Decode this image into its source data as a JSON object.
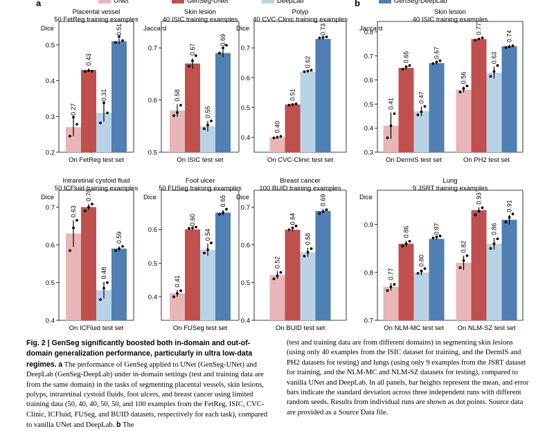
{
  "figure": {
    "panel_a_label": "a",
    "panel_b_label": "b",
    "legend": [
      {
        "name": "UNet",
        "color": "#e8b6b6"
      },
      {
        "name": "GenSeg-UNet",
        "color": "#c0504d"
      },
      {
        "name": "DeepLab",
        "color": "#b9d3e6"
      },
      {
        "name": "GenSeg-DeepLab",
        "color": "#4f7fb3"
      }
    ]
  },
  "chart_data": [
    {
      "type": "bar",
      "title": "Placental vessel",
      "subtitle": "50 FetReg training examples",
      "ylabel": "Dice",
      "ylim": [
        0.2,
        0.55
      ],
      "yticks": [
        "0.2",
        "0.3",
        "0.4",
        "0.5"
      ],
      "tick_values": [
        0.2,
        0.3,
        0.4,
        0.5
      ],
      "groups": [
        {
          "label": "On FetReg test set",
          "values": [
            0.27,
            0.43,
            0.31,
            0.51
          ],
          "labels": [
            "0.27",
            "0.43",
            "0.31",
            "0.51"
          ],
          "errors": [
            0.025,
            0.004,
            0.025,
            0.008
          ],
          "points": [
            [
              0.245,
              0.298,
              0.278
            ],
            [
              0.425,
              0.428,
              0.426
            ],
            [
              0.282,
              0.338,
              0.31
            ],
            [
              0.507,
              0.523,
              0.512
            ]
          ]
        }
      ]
    },
    {
      "type": "bar",
      "title": "Skin lesion",
      "subtitle": "40 ISIC training examples",
      "ylabel": "Jaccard",
      "ylim": [
        0.5,
        0.74
      ],
      "yticks": [
        "0.5",
        "0.6",
        "0.7"
      ],
      "tick_values": [
        0.5,
        0.6,
        0.7
      ],
      "groups": [
        {
          "label": "On ISIC test set",
          "values": [
            0.58,
            0.67,
            0.55,
            0.69
          ],
          "labels": [
            "0.58",
            "0.67",
            "0.55",
            "0.69"
          ],
          "errors": [
            0.012,
            0.01,
            0.01,
            0.008
          ],
          "points": [
            [
              0.57,
              0.576,
              0.59
            ],
            [
              0.665,
              0.675,
              0.685
            ],
            [
              0.545,
              0.552,
              0.56
            ],
            [
              0.69,
              0.7,
              0.705
            ]
          ]
        }
      ]
    },
    {
      "type": "bar",
      "title": "Polyp",
      "subtitle": "40 CVC-Clinic training examples",
      "ylabel": "Dice",
      "ylim": [
        0.35,
        0.77
      ],
      "yticks": [
        "0.4",
        "0.5",
        "0.6",
        "0.7"
      ],
      "tick_values": [
        0.4,
        0.5,
        0.6,
        0.7
      ],
      "groups": [
        {
          "label": "On CVC-Clinic test set",
          "values": [
            0.4,
            0.51,
            0.62,
            0.73
          ],
          "labels": [
            "0.40",
            "0.51",
            "0.62",
            "0.73"
          ],
          "errors": [
            0.005,
            0.003,
            0.003,
            0.002
          ],
          "points": [
            [
              0.398,
              0.4,
              0.403
            ],
            [
              0.508,
              0.51,
              0.512
            ],
            [
              0.62,
              0.622,
              0.625
            ],
            [
              0.733,
              0.735,
              0.737
            ]
          ]
        }
      ]
    },
    {
      "type": "bar",
      "title": "Skin lesion",
      "subtitle": "40 ISIC training examples",
      "ylabel": "Jaccard",
      "ylim": [
        0.3,
        0.82
      ],
      "yticks": [
        "0.3",
        "0.4",
        "0.5",
        "0.6",
        "0.7",
        "0.8"
      ],
      "tick_values": [
        0.3,
        0.4,
        0.5,
        0.6,
        0.7,
        0.8
      ],
      "groups": [
        {
          "label": "On DermIS test set",
          "values": [
            0.41,
            0.65,
            0.47,
            0.67
          ],
          "labels": [
            "0.41",
            "0.65",
            "0.47",
            "0.67"
          ],
          "errors": [
            0.055,
            0.008,
            0.02,
            0.006
          ],
          "points": [
            [
              0.36,
              0.41,
              0.46
            ],
            [
              0.645,
              0.655,
              0.66
            ],
            [
              0.455,
              0.468,
              0.49
            ],
            [
              0.668,
              0.675,
              0.68
            ]
          ]
        },
        {
          "label": "On PH2 test set",
          "values": [
            0.56,
            0.77,
            0.63,
            0.74
          ],
          "labels": [
            "0.56",
            "0.77",
            "0.63",
            "0.74"
          ],
          "errors": [
            0.012,
            0.005,
            0.025,
            0.005
          ],
          "points": [
            [
              0.55,
              0.565,
              0.575
            ],
            [
              0.765,
              0.77,
              0.775
            ],
            [
              0.615,
              0.635,
              0.66
            ],
            [
              0.735,
              0.738,
              0.742
            ]
          ]
        }
      ]
    },
    {
      "type": "bar",
      "title": "Intraretinal cystoid fluid",
      "subtitle": "50 ICFluid training examples",
      "ylabel": "Dice",
      "ylim": [
        0.4,
        0.73
      ],
      "yticks": [
        "0.4",
        "0.5",
        "0.6",
        "0.7"
      ],
      "tick_values": [
        0.4,
        0.5,
        0.6,
        0.7
      ],
      "groups": [
        {
          "label": "On ICFluid test set",
          "values": [
            0.63,
            0.7,
            0.48,
            0.59
          ],
          "labels": [
            "0.63",
            "0.70",
            "0.48",
            "0.59"
          ],
          "errors": [
            0.035,
            0.008,
            0.022,
            0.006
          ],
          "points": [
            [
              0.585,
              0.645,
              0.665
            ],
            [
              0.69,
              0.7,
              0.708
            ],
            [
              0.455,
              0.485,
              0.5
            ],
            [
              0.585,
              0.59,
              0.596
            ]
          ]
        }
      ]
    },
    {
      "type": "bar",
      "title": "Foot ulcer",
      "subtitle": "50 FUSeg training examples",
      "ylabel": "Dice",
      "ylim": [
        0.33,
        0.7
      ],
      "yticks": [
        "0.4",
        "0.5",
        "0.6"
      ],
      "tick_values": [
        0.4,
        0.5,
        0.6
      ],
      "groups": [
        {
          "label": "On FUSeg test set",
          "values": [
            0.41,
            0.6,
            0.54,
            0.65
          ],
          "labels": [
            "0.41",
            "0.60",
            "0.54",
            "0.65"
          ],
          "errors": [
            0.01,
            0.002,
            0.018,
            0.008
          ],
          "points": [
            [
              0.4,
              0.41,
              0.418
            ],
            [
              0.603,
              0.605,
              0.607
            ],
            [
              0.53,
              0.54,
              0.56
            ],
            [
              0.645,
              0.65,
              0.66
            ]
          ]
        }
      ]
    },
    {
      "type": "bar",
      "title": "Breast cancer",
      "subtitle": "100 BUID training examples",
      "ylabel": "Dice",
      "ylim": [
        0.4,
        0.73
      ],
      "yticks": [
        "0.4",
        "0.5",
        "0.6",
        "0.7"
      ],
      "tick_values": [
        0.4,
        0.5,
        0.6,
        0.7
      ],
      "groups": [
        {
          "label": "On BUID test set",
          "values": [
            0.52,
            0.64,
            0.58,
            0.69
          ],
          "labels": [
            "0.52",
            "0.64",
            "0.58",
            "0.69"
          ],
          "errors": [
            0.01,
            0.005,
            0.012,
            0.005
          ],
          "points": [
            [
              0.51,
              0.518,
              0.527
            ],
            [
              0.64,
              0.645,
              0.65
            ],
            [
              0.57,
              0.58,
              0.59
            ],
            [
              0.683,
              0.688,
              0.693
            ]
          ]
        }
      ]
    },
    {
      "type": "bar",
      "title": "Lung",
      "subtitle": "9 JSRT training examples",
      "ylabel": "Dice",
      "ylim": [
        0.7,
        0.96
      ],
      "yticks": [
        "0.7",
        "0.8",
        "0.9"
      ],
      "tick_values": [
        0.7,
        0.8,
        0.9
      ],
      "groups": [
        {
          "label": "On NLM-MC test set",
          "values": [
            0.77,
            0.86,
            0.8,
            0.87
          ],
          "labels": [
            "0.77",
            "0.86",
            "0.80",
            "0.87"
          ],
          "errors": [
            0.008,
            0.006,
            0.006,
            0.002
          ],
          "points": [
            [
              0.762,
              0.77,
              0.775
            ],
            [
              0.855,
              0.86,
              0.865
            ],
            [
              0.798,
              0.803,
              0.808
            ],
            [
              0.872,
              0.874,
              0.876
            ]
          ]
        },
        {
          "label": "On NLM-SZ test set",
          "values": [
            0.82,
            0.93,
            0.86,
            0.91
          ],
          "labels": [
            "0.82",
            "0.93",
            "0.86",
            "0.91"
          ],
          "errors": [
            0.015,
            0.006,
            0.012,
            0.01
          ],
          "points": [
            [
              0.81,
              0.825,
              0.835
            ],
            [
              0.92,
              0.928,
              0.935
            ],
            [
              0.85,
              0.86,
              0.87
            ],
            [
              0.905,
              0.915,
              0.922
            ]
          ]
        }
      ]
    }
  ],
  "caption": {
    "left_bold": "Fig. 2 | GenSeg significantly boosted both in-domain and out-of-domain generalization performance, particularly in ultra low-data regimes.",
    "left_a_label": "a",
    "left_text": "The performance of GenSeg applied to UNet (GenSeg-UNet) and DeepLab (GenSeg-DeepLab) under in-domain settings (test and training data are from the same domain) in the tasks of segmenting placental vessels, skin lesions, polyps, intraretinal cystoid fluids, foot ulcers, and breast cancer using limited training data (50, 40, 40, 50, 50, and 100 examples from the FetReg, ISIC, CVC-Clinic, ICFluid, FUSeg, and BUID datasets, respectively for each task), compared to vanilla UNet and DeepLab.",
    "left_b_label": "b",
    "left_b_text": "The",
    "right_text": "(test and training data are from different domains) in segmenting skin lesions (using only 40 examples from the ISIC dataset for training, and the DermIS and PH2 datasets for testing) and lungs (using only 9 examples from the JSRT dataset for training, and the NLM-MC and NLM-SZ datasets for testing), compared to vanilla UNet and DeepLab. In all panels, bar heights represent the mean, and error bars indicate the standard deviation across three independent runs with different random seeds. Results from individual runs are shown as dot points. Source data are provided as a Source Data file."
  }
}
